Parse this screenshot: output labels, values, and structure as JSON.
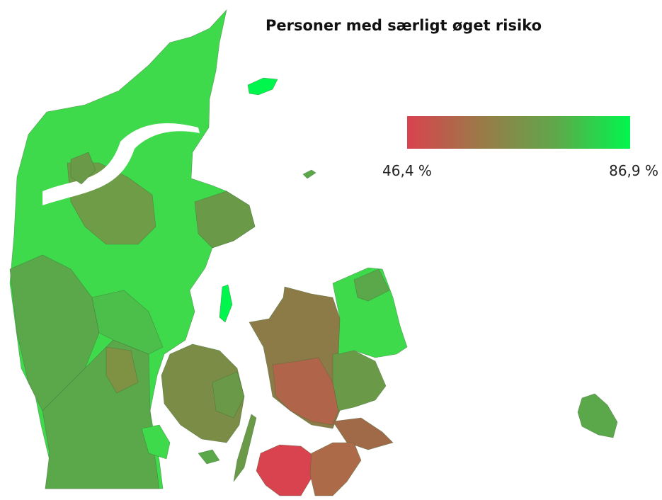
{
  "map": {
    "title": "Personer med særligt øget risiko",
    "legend": {
      "min": {
        "value": 46.4,
        "label": "46,4 %"
      },
      "max": {
        "value": 86.9,
        "label": "86,9 %"
      },
      "colors": [
        "#d9424f",
        "#9a7a48",
        "#5fa84a",
        "#00f64d"
      ]
    }
  }
}
